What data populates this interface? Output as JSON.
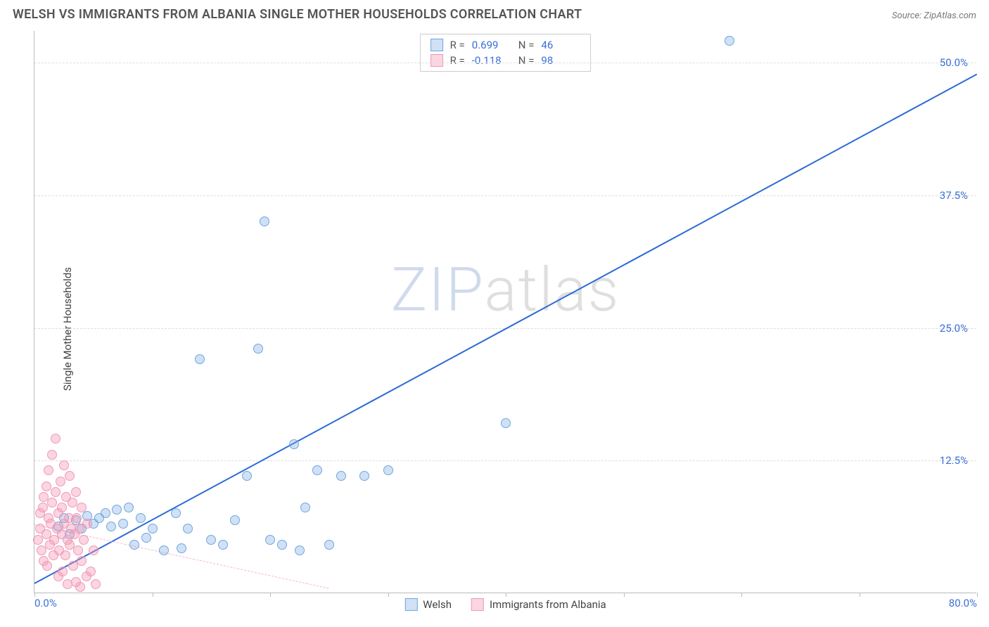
{
  "title": "WELSH VS IMMIGRANTS FROM ALBANIA SINGLE MOTHER HOUSEHOLDS CORRELATION CHART",
  "source": "Source: ZipAtlas.com",
  "ylabel": "Single Mother Households",
  "watermark_a": "ZIP",
  "watermark_b": "atlas",
  "chart": {
    "type": "scatter",
    "xlim": [
      0,
      80
    ],
    "ylim": [
      0,
      53
    ],
    "x_ticks": [
      0,
      10,
      20,
      30,
      40,
      50,
      60,
      70,
      80
    ],
    "x_tick_labels": {
      "0": "0.0%",
      "80": "80.0%"
    },
    "y_ticks": [
      12.5,
      25.0,
      37.5,
      50.0
    ],
    "y_tick_labels": [
      "12.5%",
      "25.0%",
      "37.5%",
      "50.0%"
    ],
    "grid_color": "#dddddd",
    "axis_color": "#bbbbbb",
    "background_color": "#ffffff",
    "tick_label_color": "#3b6fd6",
    "point_radius": 7,
    "series": [
      {
        "name": "Welsh",
        "fill": "rgba(120,170,230,0.35)",
        "stroke": "#6fa6e0",
        "trend": {
          "color": "#2d6bd4",
          "width": 2.5,
          "dash": "solid",
          "x1": 0,
          "y1": 1.0,
          "x2": 80,
          "y2": 49.0
        },
        "R": "0.699",
        "N": "46",
        "points": [
          [
            2,
            6.2
          ],
          [
            2.5,
            7.0
          ],
          [
            3,
            5.5
          ],
          [
            3.5,
            6.8
          ],
          [
            4,
            6.0
          ],
          [
            4.5,
            7.2
          ],
          [
            5,
            6.5
          ],
          [
            5.5,
            7.0
          ],
          [
            6,
            7.5
          ],
          [
            6.5,
            6.2
          ],
          [
            7,
            7.8
          ],
          [
            7.5,
            6.5
          ],
          [
            8,
            8.0
          ],
          [
            8.5,
            4.5
          ],
          [
            9,
            7.0
          ],
          [
            9.5,
            5.2
          ],
          [
            10,
            6.0
          ],
          [
            11,
            4.0
          ],
          [
            12,
            7.5
          ],
          [
            12.5,
            4.2
          ],
          [
            13,
            6.0
          ],
          [
            14,
            22.0
          ],
          [
            15,
            5.0
          ],
          [
            16,
            4.5
          ],
          [
            17,
            6.8
          ],
          [
            18,
            11.0
          ],
          [
            19,
            23.0
          ],
          [
            19.5,
            35.0
          ],
          [
            20,
            5.0
          ],
          [
            21,
            4.5
          ],
          [
            22,
            14.0
          ],
          [
            22.5,
            4.0
          ],
          [
            23,
            8.0
          ],
          [
            24,
            11.5
          ],
          [
            25,
            4.5
          ],
          [
            26,
            11.0
          ],
          [
            28,
            11.0
          ],
          [
            30,
            11.5
          ],
          [
            40,
            16.0
          ],
          [
            59,
            52.0
          ]
        ]
      },
      {
        "name": "Immigrants from Albania",
        "fill": "rgba(245,150,180,0.40)",
        "stroke": "#ef9ab5",
        "trend": {
          "color": "#f4b6c8",
          "width": 1.5,
          "dash": "dashed",
          "x1": 0,
          "y1": 6.5,
          "x2": 25,
          "y2": 0.5
        },
        "R": "-0.118",
        "N": "98",
        "points": [
          [
            0.3,
            5.0
          ],
          [
            0.5,
            6.0
          ],
          [
            0.5,
            7.5
          ],
          [
            0.6,
            4.0
          ],
          [
            0.7,
            8.0
          ],
          [
            0.8,
            3.0
          ],
          [
            0.8,
            9.0
          ],
          [
            1.0,
            5.5
          ],
          [
            1.0,
            10.0
          ],
          [
            1.1,
            2.5
          ],
          [
            1.2,
            7.0
          ],
          [
            1.2,
            11.5
          ],
          [
            1.3,
            4.5
          ],
          [
            1.4,
            6.5
          ],
          [
            1.5,
            8.5
          ],
          [
            1.5,
            13.0
          ],
          [
            1.6,
            3.5
          ],
          [
            1.7,
            5.0
          ],
          [
            1.8,
            9.5
          ],
          [
            1.8,
            14.5
          ],
          [
            1.9,
            6.0
          ],
          [
            2.0,
            7.5
          ],
          [
            2.0,
            1.5
          ],
          [
            2.1,
            4.0
          ],
          [
            2.2,
            10.5
          ],
          [
            2.3,
            5.5
          ],
          [
            2.3,
            8.0
          ],
          [
            2.4,
            2.0
          ],
          [
            2.5,
            6.5
          ],
          [
            2.5,
            12.0
          ],
          [
            2.6,
            3.5
          ],
          [
            2.7,
            9.0
          ],
          [
            2.8,
            5.0
          ],
          [
            2.8,
            0.8
          ],
          [
            2.9,
            7.0
          ],
          [
            3.0,
            4.5
          ],
          [
            3.0,
            11.0
          ],
          [
            3.1,
            6.0
          ],
          [
            3.2,
            8.5
          ],
          [
            3.3,
            2.5
          ],
          [
            3.4,
            5.5
          ],
          [
            3.5,
            1.0
          ],
          [
            3.5,
            9.5
          ],
          [
            3.6,
            7.0
          ],
          [
            3.7,
            4.0
          ],
          [
            3.8,
            6.0
          ],
          [
            3.9,
            0.5
          ],
          [
            4.0,
            3.0
          ],
          [
            4.0,
            8.0
          ],
          [
            4.2,
            5.0
          ],
          [
            4.4,
            1.5
          ],
          [
            4.5,
            6.5
          ],
          [
            4.8,
            2.0
          ],
          [
            5.0,
            4.0
          ],
          [
            5.2,
            0.8
          ]
        ]
      }
    ]
  },
  "legend_top": {
    "r_label": "R =",
    "n_label": "N ="
  },
  "legend_bottom": {
    "items": [
      "Welsh",
      "Immigrants from Albania"
    ]
  }
}
